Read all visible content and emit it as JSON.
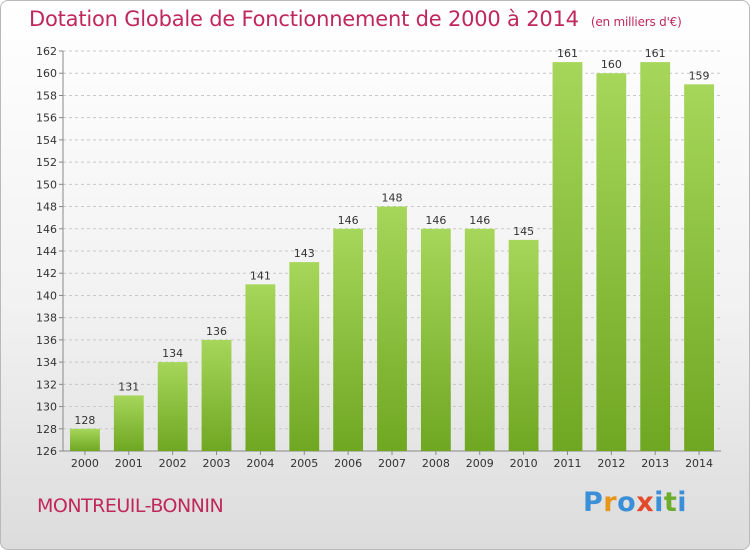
{
  "header": {
    "title": "Dotation Globale de Fonctionnement de 2000 à 2014",
    "subtitle": "(en milliers d'€)"
  },
  "footer": {
    "commune": "MONTREUIL-BONNIN",
    "brand": "Proxiti",
    "brand_colors": [
      "#3b8fd8",
      "#e8951b",
      "#3b8fd8",
      "#e24a2a",
      "#3b8fd8",
      "#6cae2b"
    ]
  },
  "colors": {
    "bar_light": "#a6d65a",
    "bar_dark": "#6fa722",
    "title": "#c0285c"
  },
  "chart_data": {
    "type": "bar",
    "title": "Dotation Globale de Fonctionnement de 2000 à 2014",
    "subtitle": "(en milliers d'€)",
    "xlabel": "",
    "ylabel": "",
    "categories": [
      "2000",
      "2001",
      "2002",
      "2003",
      "2004",
      "2005",
      "2006",
      "2007",
      "2008",
      "2009",
      "2010",
      "2011",
      "2012",
      "2013",
      "2014"
    ],
    "values": [
      128,
      131,
      134,
      136,
      141,
      143,
      146,
      148,
      146,
      146,
      145,
      161,
      160,
      161,
      159
    ],
    "ylim": [
      126,
      162
    ],
    "yticks": [
      126,
      128,
      130,
      132,
      134,
      136,
      138,
      140,
      142,
      144,
      146,
      148,
      150,
      152,
      154,
      156,
      158,
      160,
      162
    ],
    "grid": true,
    "legend": "none"
  }
}
